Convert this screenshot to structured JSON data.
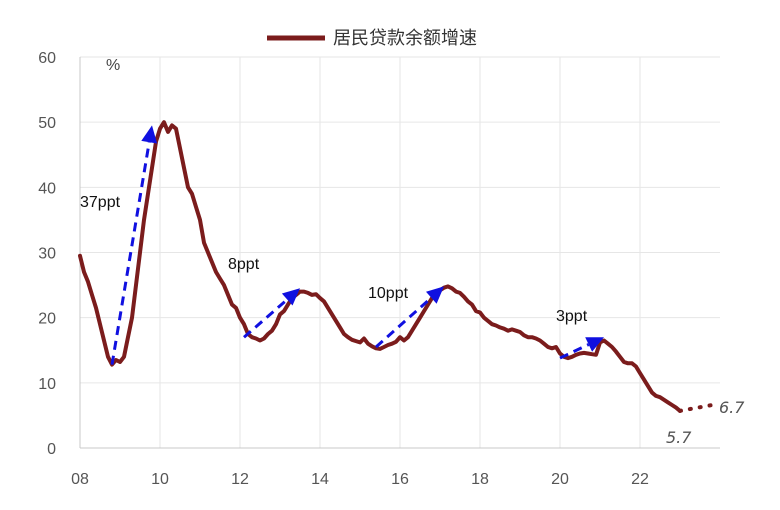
{
  "chart_data": {
    "type": "line",
    "title": "",
    "unit_label": "%",
    "legend": {
      "label": "居民贷款余额增速",
      "placement": "top-center"
    },
    "colors": {
      "series": "#7B1C1C",
      "arrow": "#1010E0",
      "grid": "#E6E6E6"
    },
    "xlim": [
      2008,
      2024
    ],
    "ylim": [
      0,
      60
    ],
    "x_ticks": [
      {
        "value": 2008,
        "label": "08"
      },
      {
        "value": 2010,
        "label": "10"
      },
      {
        "value": 2012,
        "label": "12"
      },
      {
        "value": 2014,
        "label": "14"
      },
      {
        "value": 2016,
        "label": "16"
      },
      {
        "value": 2018,
        "label": "18"
      },
      {
        "value": 2020,
        "label": "20"
      },
      {
        "value": 2022,
        "label": "22"
      }
    ],
    "y_ticks": [
      0,
      10,
      20,
      30,
      40,
      50,
      60
    ],
    "grid": true,
    "series": [
      {
        "values": [
          [
            2008.0,
            29.5
          ],
          [
            2008.1,
            27.0
          ],
          [
            2008.2,
            25.5
          ],
          [
            2008.3,
            23.5
          ],
          [
            2008.4,
            21.5
          ],
          [
            2008.5,
            19.0
          ],
          [
            2008.6,
            16.5
          ],
          [
            2008.7,
            14.0
          ],
          [
            2008.8,
            12.8
          ],
          [
            2008.9,
            13.5
          ],
          [
            2009.0,
            13.2
          ],
          [
            2009.1,
            14.0
          ],
          [
            2009.2,
            17.0
          ],
          [
            2009.3,
            20.0
          ],
          [
            2009.4,
            25.0
          ],
          [
            2009.5,
            30.0
          ],
          [
            2009.6,
            35.0
          ],
          [
            2009.7,
            39.0
          ],
          [
            2009.8,
            43.0
          ],
          [
            2009.9,
            47.0
          ],
          [
            2010.0,
            49.0
          ],
          [
            2010.1,
            50.0
          ],
          [
            2010.2,
            48.5
          ],
          [
            2010.3,
            49.5
          ],
          [
            2010.4,
            49.0
          ],
          [
            2010.5,
            46.0
          ],
          [
            2010.6,
            43.0
          ],
          [
            2010.7,
            40.0
          ],
          [
            2010.8,
            39.0
          ],
          [
            2010.9,
            37.0
          ],
          [
            2011.0,
            35.0
          ],
          [
            2011.1,
            31.5
          ],
          [
            2011.2,
            30.0
          ],
          [
            2011.3,
            28.5
          ],
          [
            2011.4,
            27.0
          ],
          [
            2011.5,
            26.0
          ],
          [
            2011.6,
            25.0
          ],
          [
            2011.7,
            23.5
          ],
          [
            2011.8,
            22.0
          ],
          [
            2011.9,
            21.5
          ],
          [
            2012.0,
            20.0
          ],
          [
            2012.1,
            19.0
          ],
          [
            2012.2,
            17.5
          ],
          [
            2012.3,
            17.0
          ],
          [
            2012.4,
            16.8
          ],
          [
            2012.5,
            16.5
          ],
          [
            2012.6,
            16.8
          ],
          [
            2012.7,
            17.5
          ],
          [
            2012.8,
            18.0
          ],
          [
            2012.9,
            19.0
          ],
          [
            2013.0,
            20.5
          ],
          [
            2013.1,
            21.0
          ],
          [
            2013.2,
            22.0
          ],
          [
            2013.3,
            23.0
          ],
          [
            2013.4,
            23.5
          ],
          [
            2013.5,
            24.0
          ],
          [
            2013.6,
            24.0
          ],
          [
            2013.7,
            23.8
          ],
          [
            2013.8,
            23.5
          ],
          [
            2013.9,
            23.6
          ],
          [
            2014.0,
            23.0
          ],
          [
            2014.1,
            22.5
          ],
          [
            2014.2,
            21.5
          ],
          [
            2014.3,
            20.5
          ],
          [
            2014.4,
            19.5
          ],
          [
            2014.5,
            18.5
          ],
          [
            2014.6,
            17.5
          ],
          [
            2014.7,
            17.0
          ],
          [
            2014.8,
            16.6
          ],
          [
            2014.9,
            16.4
          ],
          [
            2015.0,
            16.2
          ],
          [
            2015.1,
            16.8
          ],
          [
            2015.2,
            16.0
          ],
          [
            2015.3,
            15.6
          ],
          [
            2015.4,
            15.3
          ],
          [
            2015.5,
            15.2
          ],
          [
            2015.6,
            15.5
          ],
          [
            2015.7,
            15.8
          ],
          [
            2015.8,
            16.0
          ],
          [
            2015.9,
            16.3
          ],
          [
            2016.0,
            17.0
          ],
          [
            2016.1,
            16.5
          ],
          [
            2016.2,
            17.0
          ],
          [
            2016.3,
            18.0
          ],
          [
            2016.4,
            19.0
          ],
          [
            2016.5,
            20.0
          ],
          [
            2016.6,
            21.0
          ],
          [
            2016.7,
            22.0
          ],
          [
            2016.8,
            23.0
          ],
          [
            2016.9,
            23.5
          ],
          [
            2017.0,
            24.2
          ],
          [
            2017.1,
            24.6
          ],
          [
            2017.2,
            24.8
          ],
          [
            2017.3,
            24.5
          ],
          [
            2017.4,
            24.0
          ],
          [
            2017.5,
            23.8
          ],
          [
            2017.6,
            23.2
          ],
          [
            2017.7,
            22.5
          ],
          [
            2017.8,
            22.0
          ],
          [
            2017.9,
            21.0
          ],
          [
            2018.0,
            20.8
          ],
          [
            2018.1,
            20.0
          ],
          [
            2018.2,
            19.5
          ],
          [
            2018.3,
            19.0
          ],
          [
            2018.4,
            18.8
          ],
          [
            2018.5,
            18.5
          ],
          [
            2018.6,
            18.3
          ],
          [
            2018.7,
            18.0
          ],
          [
            2018.8,
            18.2
          ],
          [
            2018.9,
            18.0
          ],
          [
            2019.0,
            17.8
          ],
          [
            2019.1,
            17.3
          ],
          [
            2019.2,
            17.0
          ],
          [
            2019.3,
            17.0
          ],
          [
            2019.4,
            16.8
          ],
          [
            2019.5,
            16.5
          ],
          [
            2019.6,
            16.0
          ],
          [
            2019.7,
            15.5
          ],
          [
            2019.8,
            15.3
          ],
          [
            2019.9,
            15.5
          ],
          [
            2020.0,
            14.5
          ],
          [
            2020.1,
            14.0
          ],
          [
            2020.2,
            13.8
          ],
          [
            2020.3,
            14.0
          ],
          [
            2020.4,
            14.3
          ],
          [
            2020.5,
            14.5
          ],
          [
            2020.6,
            14.6
          ],
          [
            2020.7,
            14.5
          ],
          [
            2020.8,
            14.4
          ],
          [
            2020.9,
            14.3
          ],
          [
            2021.0,
            16.2
          ],
          [
            2021.1,
            16.5
          ],
          [
            2021.2,
            16.0
          ],
          [
            2021.3,
            15.5
          ],
          [
            2021.4,
            14.8
          ],
          [
            2021.5,
            14.0
          ],
          [
            2021.6,
            13.2
          ],
          [
            2021.7,
            13.0
          ],
          [
            2021.8,
            13.0
          ],
          [
            2021.9,
            12.5
          ],
          [
            2022.0,
            11.5
          ],
          [
            2022.1,
            10.5
          ],
          [
            2022.2,
            9.5
          ],
          [
            2022.3,
            8.5
          ],
          [
            2022.4,
            8.0
          ],
          [
            2022.5,
            7.8
          ],
          [
            2022.6,
            7.4
          ],
          [
            2022.7,
            7.0
          ],
          [
            2022.8,
            6.6
          ],
          [
            2022.9,
            6.2
          ],
          [
            2023.0,
            5.7
          ]
        ]
      }
    ],
    "projection": {
      "start": [
        2023.0,
        5.7
      ],
      "end": [
        2023.9,
        6.7
      ],
      "start_label": "5.7",
      "end_label": "6.7",
      "style": "dotted"
    },
    "annotations": [
      {
        "text": "37ppt",
        "from": [
          2008.8,
          12.8
        ],
        "to": [
          2009.8,
          49.5
        ],
        "text_at": [
          2008.0,
          37.0
        ]
      },
      {
        "text": "8ppt",
        "from": [
          2012.1,
          17.0
        ],
        "to": [
          2013.5,
          24.5
        ],
        "text_at": [
          2011.7,
          27.5
        ]
      },
      {
        "text": "10ppt",
        "from": [
          2015.4,
          15.5
        ],
        "to": [
          2017.1,
          24.8
        ],
        "text_at": [
          2015.2,
          23.0
        ]
      },
      {
        "text": "3ppt",
        "from": [
          2020.0,
          13.8
        ],
        "to": [
          2021.1,
          17.0
        ],
        "text_at": [
          2019.9,
          19.5
        ]
      }
    ]
  }
}
